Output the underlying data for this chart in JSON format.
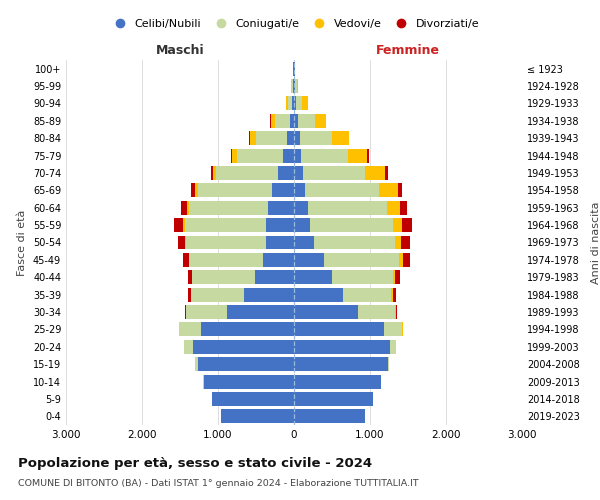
{
  "age_groups": [
    "0-4",
    "5-9",
    "10-14",
    "15-19",
    "20-24",
    "25-29",
    "30-34",
    "35-39",
    "40-44",
    "45-49",
    "50-54",
    "55-59",
    "60-64",
    "65-69",
    "70-74",
    "75-79",
    "80-84",
    "85-89",
    "90-94",
    "95-99",
    "100+"
  ],
  "birth_years": [
    "2019-2023",
    "2014-2018",
    "2009-2013",
    "2004-2008",
    "1999-2003",
    "1994-1998",
    "1989-1993",
    "1984-1988",
    "1979-1983",
    "1974-1978",
    "1969-1973",
    "1964-1968",
    "1959-1963",
    "1954-1958",
    "1949-1953",
    "1944-1948",
    "1939-1943",
    "1934-1938",
    "1929-1933",
    "1924-1928",
    "≤ 1923"
  ],
  "male_celibi": [
    960,
    1080,
    1190,
    1260,
    1330,
    1220,
    880,
    660,
    510,
    410,
    370,
    370,
    340,
    290,
    210,
    145,
    95,
    55,
    25,
    18,
    10
  ],
  "male_coniugati": [
    1,
    2,
    4,
    38,
    115,
    290,
    540,
    690,
    830,
    970,
    1050,
    1070,
    1040,
    970,
    810,
    610,
    410,
    195,
    55,
    18,
    4
  ],
  "male_vedovi": [
    0,
    0,
    0,
    0,
    1,
    1,
    1,
    2,
    4,
    8,
    13,
    18,
    28,
    38,
    48,
    58,
    78,
    58,
    28,
    8,
    2
  ],
  "male_divorziati": [
    0,
    0,
    0,
    1,
    4,
    8,
    18,
    38,
    48,
    75,
    95,
    115,
    78,
    58,
    28,
    18,
    8,
    4,
    1,
    0,
    0
  ],
  "female_celibi": [
    940,
    1040,
    1140,
    1235,
    1265,
    1185,
    840,
    640,
    495,
    395,
    265,
    215,
    178,
    148,
    118,
    98,
    78,
    58,
    28,
    18,
    10
  ],
  "female_coniugati": [
    0,
    1,
    2,
    18,
    75,
    240,
    490,
    640,
    810,
    990,
    1065,
    1085,
    1040,
    970,
    810,
    610,
    425,
    215,
    78,
    18,
    4
  ],
  "female_vedovi": [
    0,
    0,
    0,
    0,
    1,
    4,
    8,
    18,
    28,
    48,
    75,
    115,
    175,
    245,
    275,
    255,
    215,
    148,
    78,
    18,
    2
  ],
  "female_divorziati": [
    0,
    0,
    0,
    0,
    2,
    8,
    22,
    48,
    68,
    95,
    115,
    135,
    88,
    58,
    38,
    18,
    10,
    6,
    2,
    0,
    0
  ],
  "colors": {
    "celibi": "#4472c4",
    "coniugati": "#c5d9a0",
    "vedovi": "#ffc000",
    "divorziati": "#c00000"
  },
  "xlim": 3000,
  "title": "Popolazione per età, sesso e stato civile - 2024",
  "subtitle": "COMUNE DI BITONTO (BA) - Dati ISTAT 1° gennaio 2024 - Elaborazione TUTTITALIA.IT",
  "ylabel_left": "Fasce di età",
  "ylabel_right": "Anni di nascita",
  "xlabel_left": "Maschi",
  "xlabel_right": "Femmine",
  "bg_color": "#ffffff",
  "grid_color": "#d0d0d0"
}
